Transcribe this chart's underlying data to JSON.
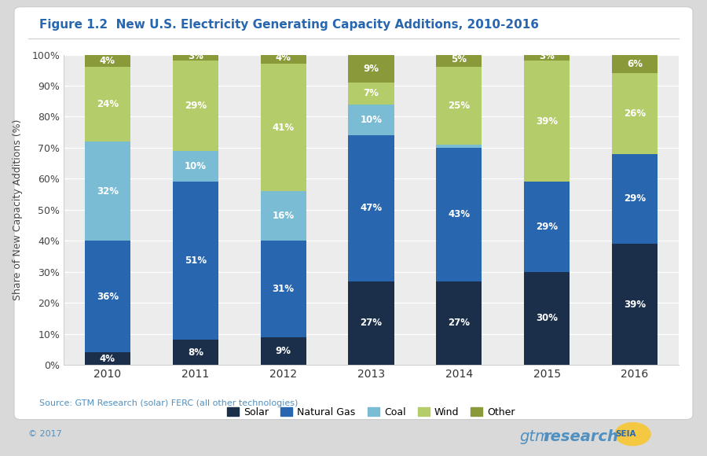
{
  "title": "Figure 1.2  New U.S. Electricity Generating Capacity Additions, 2010-2016",
  "ylabel": "Share of New Capacity Additions (%)",
  "source_text": "Source: GTM Research (solar) FERC (all other technologies)",
  "years": [
    "2010",
    "2011",
    "2012",
    "2013",
    "2014",
    "2015",
    "2016"
  ],
  "categories": [
    "Solar",
    "Natural Gas",
    "Coal",
    "Wind",
    "Other"
  ],
  "colors": [
    "#1b2f4b",
    "#2866b0",
    "#7bbcd5",
    "#b5cc6a",
    "#8a9a3a"
  ],
  "data": {
    "Solar": [
      4,
      8,
      9,
      27,
      27,
      30,
      39
    ],
    "Natural Gas": [
      36,
      51,
      31,
      47,
      43,
      29,
      29
    ],
    "Coal": [
      32,
      10,
      16,
      10,
      1,
      0,
      0
    ],
    "Wind": [
      24,
      29,
      41,
      7,
      25,
      39,
      26
    ],
    "Other": [
      4,
      3,
      4,
      9,
      5,
      3,
      6
    ]
  },
  "bg_color": "#d9d9d9",
  "panel_bg": "#f5f5f5",
  "chart_bg": "#ececec",
  "panel_color": "#ffffff",
  "title_color": "#2866b0",
  "label_color": "#ffffff",
  "source_color": "#5090c0",
  "copyright_color": "#5090c0",
  "ylim": [
    0,
    100
  ],
  "yticks": [
    0,
    10,
    20,
    30,
    40,
    50,
    60,
    70,
    80,
    90,
    100
  ]
}
